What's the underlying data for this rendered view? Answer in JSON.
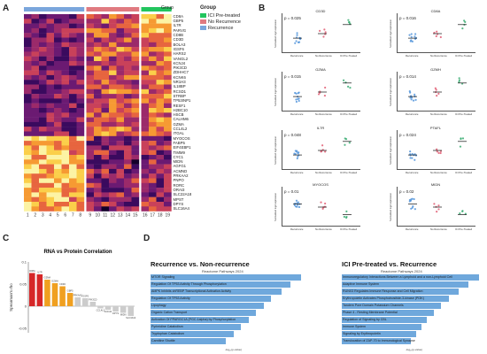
{
  "panels": {
    "a": "A",
    "b": "B",
    "c": "C",
    "d": "D"
  },
  "heatmap": {
    "group_label": "Group",
    "legend": [
      {
        "label": "ICI Pre-treated",
        "color": "#22c55e"
      },
      {
        "label": "No Recurrence",
        "color": "#e07a80"
      },
      {
        "label": "Recurrence",
        "color": "#7aa6dc"
      }
    ],
    "genes": [
      "CD8A",
      "GBP5",
      "IL7R",
      "PARVG",
      "CD8B",
      "CD3D",
      "BOLA3",
      "IGSF6",
      "HARS2",
      "VANGL2",
      "KCNJ4",
      "PIK3CD",
      "ZDHHC7",
      "KCNK6",
      "NR1H3",
      "IL18BP",
      "RCSD1",
      "STRBP",
      "TP53INP1",
      "RESF1",
      "H2BC10",
      "HSCB",
      "CALHM6",
      "GZMA",
      "CCL4L2",
      "ITGAL",
      "MYOCOS",
      "FABP5",
      "EIF4EBP1",
      "TIMM9",
      "CYC1",
      "MIDN",
      "AGFG1",
      "ACMND",
      "PRKAA2",
      "PNPO",
      "RORC",
      "ORAI3",
      "SLC22A18",
      "MPST",
      "DPYS",
      "SLC16A4"
    ],
    "columns": [
      "1",
      "2",
      "3",
      "4",
      "5",
      "6",
      "7",
      "8",
      "9",
      "10",
      "11",
      "12",
      "13",
      "14",
      "15",
      "16",
      "17",
      "18",
      "19"
    ]
  },
  "scatter": {
    "xcats": [
      "Recurrence",
      "No Recurrence",
      "ICI Pre-Treated"
    ],
    "ylabel": "Normalized log2 expression",
    "plots": [
      {
        "title": "CD3D",
        "p": "p = 0.025"
      },
      {
        "title": "CD8A",
        "p": "p = 0.016"
      },
      {
        "title": "GZMA",
        "p": "p = 0.015"
      },
      {
        "title": "GZMH",
        "p": "p = 0.014"
      },
      {
        "title": "IL7R",
        "p": "p = 0.048"
      },
      {
        "title": "PTAFL",
        "p": "p = 0.024"
      },
      {
        "title": "MYOCOS",
        "p": "p = 0.01"
      },
      {
        "title": "MIDN",
        "p": "p = 0.02"
      }
    ]
  },
  "rna_protein": {
    "title": "RNA vs Protein Correlation",
    "ylabel": "Spearman's rho",
    "tick_labels": [
      "0.1",
      "0.05",
      "0",
      "-0.05"
    ],
    "bar_labels": [
      "CD8A",
      "IL7R",
      "GZMA",
      "GZMH",
      "CD3D",
      "GBP5",
      "PRKAA2",
      "IGSF6",
      "PIK3CD",
      "CCL4L2",
      "KCNJ4",
      "DPYS",
      "MIDN",
      "SLC16A4"
    ],
    "values": [
      0.075,
      0.072,
      0.06,
      0.052,
      0.045,
      0.03,
      0.02,
      0.018,
      0.01,
      -0.005,
      -0.008,
      -0.012,
      -0.015,
      -0.022
    ],
    "colors": [
      "#d62728",
      "#d62728",
      "#f0a020",
      "#f0a020",
      "#f0a020",
      "#f0a020",
      "#cccccc",
      "#cccccc",
      "#cccccc",
      "#cccccc",
      "#cccccc",
      "#cccccc",
      "#cccccc",
      "#cccccc"
    ]
  },
  "pathways_left": {
    "title": "Recurrence vs. Non-recurrence",
    "subtitle": "Reactome Pathways 2024",
    "xlabel": "-log₁₀(p-value)",
    "items": [
      {
        "label": "MTOR Signaling",
        "value": 1.0
      },
      {
        "label": "Regulation Of TP53 Activity Through Phosphorylation",
        "value": 0.93
      },
      {
        "label": "AMPK Inhibits chREBP Transcriptional Activation Activity",
        "value": 0.87
      },
      {
        "label": "Regulation Of TP53 Activity",
        "value": 0.8
      },
      {
        "label": "Lipophagy",
        "value": 0.75
      },
      {
        "label": "Organic Cation Transport",
        "value": 0.7
      },
      {
        "label": "Activation Of PPARGC1A (PGC-1alpha) by Phosphorylation",
        "value": 0.65
      },
      {
        "label": "Pyrimidine Catabolism",
        "value": 0.6
      },
      {
        "label": "Tryptophan Catabolism",
        "value": 0.55
      },
      {
        "label": "Carnitine Shuttle",
        "value": 0.5
      }
    ]
  },
  "pathways_right": {
    "title": "ICI Pre-treated vs. Recurrence",
    "subtitle": "Reactome Pathways 2024",
    "xlabel": "-log₁₀(p-value)",
    "items": [
      {
        "label": "Immunoregulatory Interactions Between a Lymphoid and a non-Lymphoid Cell",
        "value": 1.0
      },
      {
        "label": "Adaptive Immune System",
        "value": 0.92
      },
      {
        "label": "RUNX3 Regulates Immune Response and Cell Migration",
        "value": 0.85
      },
      {
        "label": "Erythropoietin Activates Phosphoinositide-3-kinase (PI3K)",
        "value": 0.78
      },
      {
        "label": "Tandem Pore Domain Potassium Channels",
        "value": 0.72
      },
      {
        "label": "Phase 4 - Resting Membrane Potential",
        "value": 0.67
      },
      {
        "label": "Regulation of Signaling by CBL",
        "value": 0.62
      },
      {
        "label": "Immune System",
        "value": 0.58
      },
      {
        "label": "Signaling by Erythropoietin",
        "value": 0.54
      },
      {
        "label": "Translocation of ZAP-70 to Immunological Synapse",
        "value": 0.5
      }
    ]
  }
}
